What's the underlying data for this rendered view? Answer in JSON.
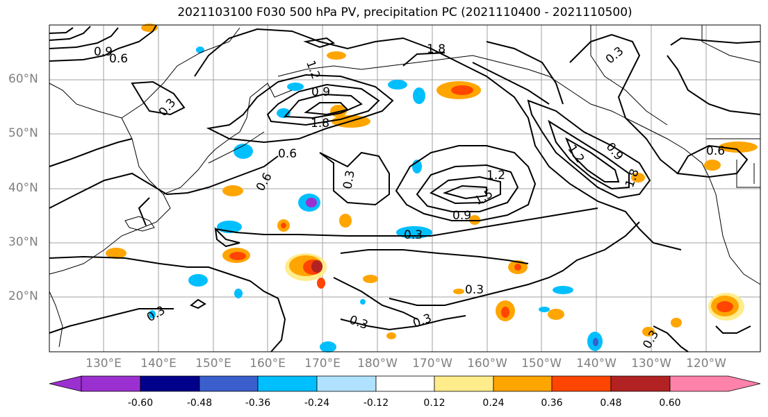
{
  "title": "2021103100 F030 500 hPa PV, precipitation PC (2021110400 - 2021110500)",
  "lat_labels": [
    "60°N",
    "50°N",
    "40°N",
    "30°N",
    "20°N"
  ],
  "lon_labels": [
    "130°E",
    "140°E",
    "150°E",
    "160°E",
    "170°E",
    "180°W",
    "170°W",
    "160°W",
    "150°W",
    "140°W",
    "130°W",
    "120°W"
  ],
  "colorbar": {
    "ticks": [
      "-0.60",
      "-0.48",
      "-0.36",
      "-0.24",
      "-0.12",
      "0.12",
      "0.24",
      "0.36",
      "0.48",
      "0.60"
    ],
    "colors": [
      "#9b30d0",
      "#00008b",
      "#3a5fcd",
      "#00bfff",
      "#b0e2ff",
      "#ffffff",
      "#ffec8b",
      "#ffa500",
      "#ff4500",
      "#b22222",
      "#ff82ab"
    ]
  },
  "contour_labels": [
    "0.9",
    "0.6",
    "1.2",
    "0.9",
    "1.8",
    "0.6",
    "0.3",
    "0.6",
    "0.3",
    "1.2",
    "1.5",
    "0.9",
    "0.3",
    "0.3",
    "0.3",
    "0.3",
    "1.8",
    "0.3",
    "0.9",
    "1.2",
    "1.8",
    "0.6",
    "0.3",
    "0.3"
  ]
}
